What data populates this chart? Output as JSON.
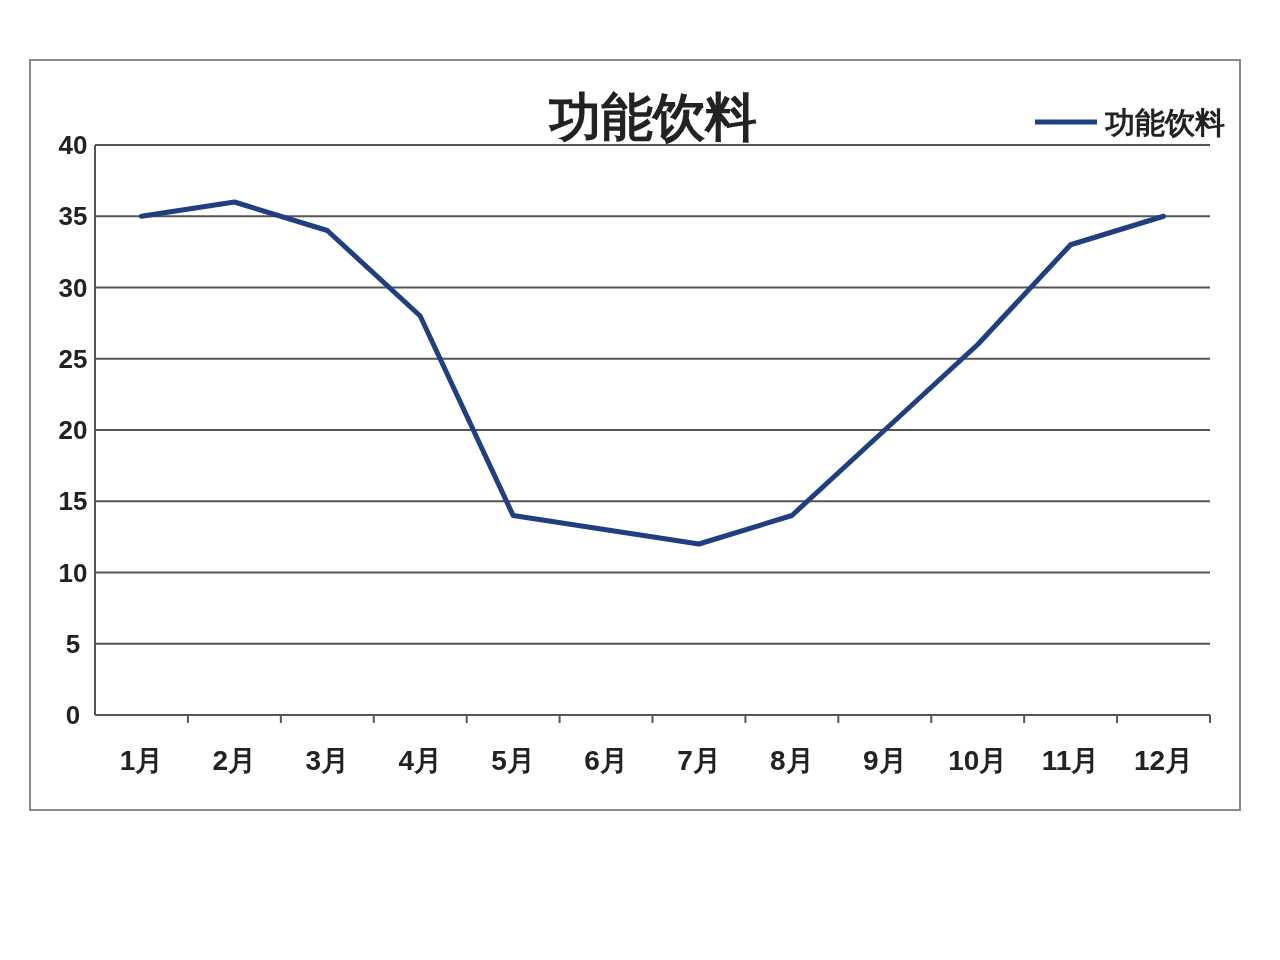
{
  "chart_data": {
    "type": "line",
    "title": "功能饮料",
    "categories": [
      "1月",
      "2月",
      "3月",
      "4月",
      "5月",
      "6月",
      "7月",
      "8月",
      "9月",
      "10月",
      "11月",
      "12月"
    ],
    "series": [
      {
        "name": "功能饮料",
        "color": "#1f3f7f",
        "values": [
          35,
          36,
          34,
          28,
          14,
          13,
          12,
          14,
          20,
          26,
          33,
          35
        ]
      }
    ],
    "ylim": [
      0,
      40
    ],
    "yticks": [
      0,
      5,
      10,
      15,
      20,
      25,
      30,
      35,
      40
    ],
    "grid": "y",
    "legend": "top right",
    "line_style": "solid"
  }
}
